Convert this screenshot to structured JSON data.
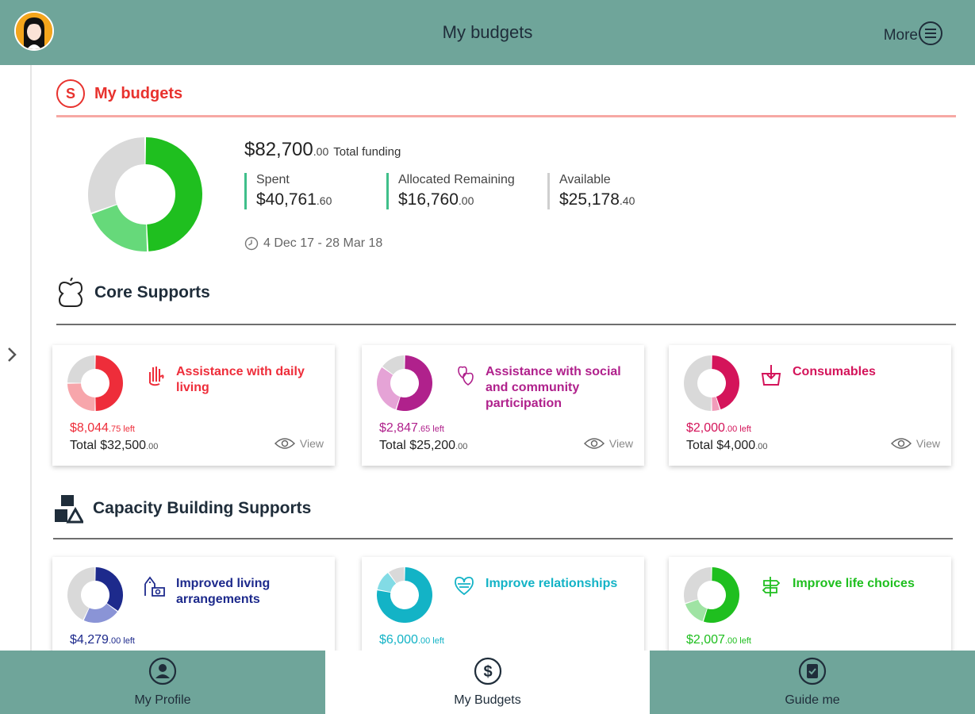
{
  "header": {
    "title": "My budgets",
    "more_label": "More"
  },
  "summary": {
    "section_title": "My budgets",
    "badge_letter": "S",
    "total_funding": {
      "dollars": "$82,700",
      "cents": ".00",
      "label": "Total funding"
    },
    "stats": [
      {
        "label": "Spent",
        "dollars": "$40,761",
        "cents": ".60"
      },
      {
        "label": "Allocated Remaining",
        "dollars": "$16,760",
        "cents": ".00"
      },
      {
        "label": "Available",
        "dollars": "$25,178",
        "cents": ".40"
      }
    ],
    "date_range": "4 Dec 17 - 28 Mar 18",
    "donut": {
      "spent": 40761.6,
      "allocated_remaining": 16760.0,
      "available": 25178.4,
      "colors": [
        "#1fbf1f",
        "#66d97a",
        "#d9d9d9"
      ]
    }
  },
  "core": {
    "section_title": "Core Supports",
    "cards": [
      {
        "title": "Assistance with daily living",
        "left_dollars": "$8,044",
        "left_cents": ".75 left",
        "total_label": "Total $32,500",
        "total_cents": ".00",
        "view_label": "View",
        "color": "#ee2d3a",
        "light": "#f7a6ab",
        "parts": [
          0.5,
          0.25,
          0.25
        ],
        "icon": "hand-icon"
      },
      {
        "title": "Assistance with social and community participation",
        "left_dollars": "$2,847",
        "left_cents": ".65 left",
        "total_label": "Total $25,200",
        "total_cents": ".00",
        "view_label": "View",
        "color": "#b0218c",
        "light": "#e5a3d6",
        "parts": [
          0.55,
          0.3,
          0.15
        ],
        "icon": "hearts-icon"
      },
      {
        "title": "Consumables",
        "left_dollars": "$2,000",
        "left_cents": ".00 left",
        "total_label": "Total $4,000",
        "total_cents": ".00",
        "view_label": "View",
        "color": "#d4145a",
        "light": "#f19cba",
        "parts": [
          0.45,
          0.05,
          0.5
        ],
        "icon": "basket-icon"
      }
    ]
  },
  "capacity": {
    "section_title": "Capacity Building Supports",
    "cards": [
      {
        "title": "Improved living arrangements",
        "left_dollars": "$4,279",
        "left_cents": ".00 left",
        "color": "#1d2a8c",
        "light": "#8a94d6",
        "parts": [
          0.35,
          0.22,
          0.43
        ],
        "icon": "house-icon"
      },
      {
        "title": "Improve relationships",
        "left_dollars": "$6,000",
        "left_cents": ".00 left",
        "color": "#13b3c6",
        "light": "#82dbe5",
        "parts": [
          0.78,
          0.12,
          0.1
        ],
        "icon": "heart-icon"
      },
      {
        "title": "Improve life choices",
        "left_dollars": "$2,007",
        "left_cents": ".00 left",
        "color": "#1fbf1f",
        "light": "#9fe3a3",
        "parts": [
          0.55,
          0.15,
          0.3
        ],
        "icon": "signpost-icon"
      }
    ]
  },
  "bottom_nav": [
    {
      "label": "My Profile",
      "icon": "user-circle-icon",
      "active": false
    },
    {
      "label": "My Budgets",
      "icon": "dollar-circle-icon",
      "active": true
    },
    {
      "label": "Guide me",
      "icon": "clipboard-check-icon",
      "active": false
    }
  ]
}
